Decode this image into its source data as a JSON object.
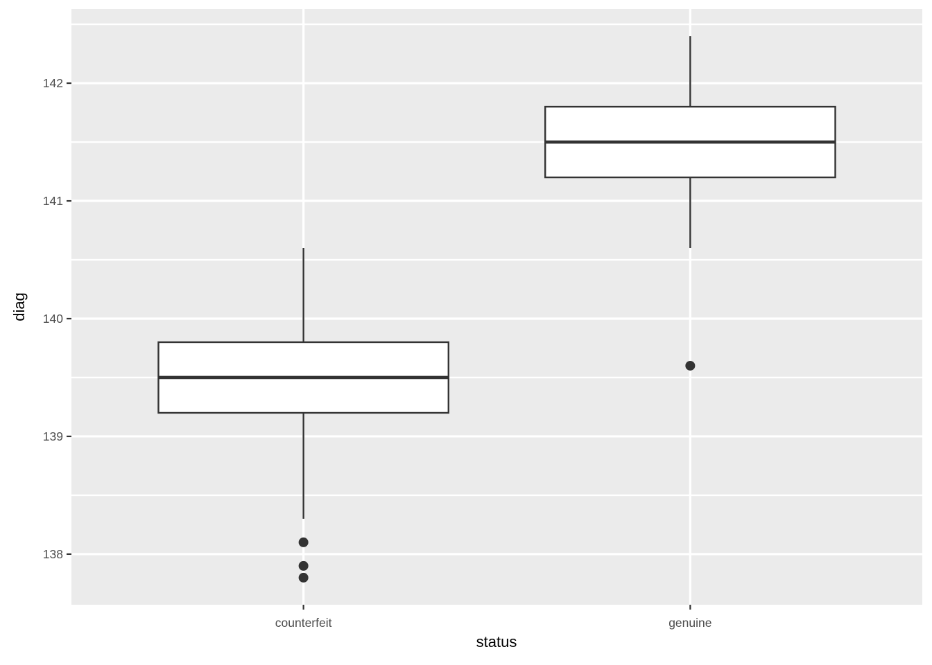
{
  "figure": {
    "background": "#FFFFFF",
    "panel_background": "#EBEBEB",
    "grid_color": "#FFFFFF",
    "box_stroke": "#333333",
    "box_fill": "#FFFFFF",
    "outlier_color": "#333333",
    "tick_mark_color": "#333333",
    "tick_label_color": "#4D4D4D",
    "axis_title_color": "#000000"
  },
  "chart_data": {
    "type": "boxplot",
    "title": "",
    "xlabel": "status",
    "ylabel": "diag",
    "categories": [
      "counterfeit",
      "genuine"
    ],
    "ylim": [
      137.57,
      142.63
    ],
    "y_major_ticks": [
      138,
      139,
      140,
      141,
      142
    ],
    "y_minor_ticks": [
      138.5,
      139.5,
      140.5,
      141.5,
      142.5
    ],
    "grid": true,
    "legend": "none",
    "series": [
      {
        "category": "counterfeit",
        "lower_whisker": 138.3,
        "q1": 139.2,
        "median": 139.5,
        "q3": 139.8,
        "upper_whisker": 140.6,
        "outliers": [
          138.1,
          137.9,
          137.8
        ]
      },
      {
        "category": "genuine",
        "lower_whisker": 140.6,
        "q1": 141.2,
        "median": 141.5,
        "q3": 141.8,
        "upper_whisker": 142.4,
        "outliers": [
          139.6
        ]
      }
    ]
  }
}
